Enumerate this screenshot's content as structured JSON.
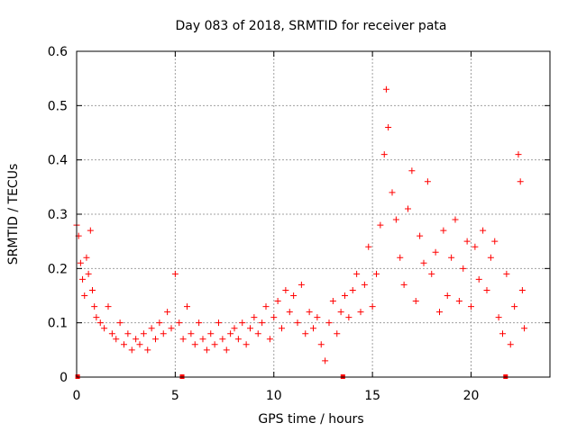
{
  "chart_data": {
    "type": "scatter",
    "title": "Day 083 of 2018, SRMTID for receiver pata",
    "xlabel": "GPS time / hours",
    "ylabel": "SRMTID / TECUs",
    "xlim": [
      0,
      24
    ],
    "ylim": [
      0,
      0.6
    ],
    "xticks": [
      0,
      5,
      10,
      15,
      20
    ],
    "xtick_labels": [
      "0",
      "5",
      "10",
      "15",
      "20"
    ],
    "yticks": [
      0,
      0.1,
      0.2,
      0.3,
      0.4,
      0.5,
      0.6
    ],
    "ytick_labels": [
      "0",
      "0.1",
      "0.2",
      "0.3",
      "0.4",
      "0.5",
      "0.6"
    ],
    "grid": true,
    "marker": "+",
    "color": "#ff0000",
    "gap_markers": [
      0.05,
      5.35,
      13.5,
      21.75
    ],
    "series": [
      {
        "name": "SRMTID",
        "x": [
          0.0,
          0.1,
          0.2,
          0.3,
          0.4,
          0.5,
          0.6,
          0.7,
          0.8,
          0.9,
          1.0,
          1.2,
          1.4,
          1.6,
          1.8,
          2.0,
          2.2,
          2.4,
          2.6,
          2.8,
          3.0,
          3.2,
          3.4,
          3.6,
          3.8,
          4.0,
          4.2,
          4.4,
          4.6,
          4.8,
          5.0,
          5.2,
          5.4,
          5.6,
          5.8,
          6.0,
          6.2,
          6.4,
          6.6,
          6.8,
          7.0,
          7.2,
          7.4,
          7.6,
          7.8,
          8.0,
          8.2,
          8.4,
          8.6,
          8.8,
          9.0,
          9.2,
          9.4,
          9.6,
          9.8,
          10.0,
          10.2,
          10.4,
          10.6,
          10.8,
          11.0,
          11.2,
          11.4,
          11.6,
          11.8,
          12.0,
          12.2,
          12.4,
          12.6,
          12.8,
          13.0,
          13.2,
          13.4,
          13.6,
          13.8,
          14.0,
          14.2,
          14.4,
          14.6,
          14.8,
          15.0,
          15.2,
          15.4,
          15.6,
          15.7,
          15.8,
          16.0,
          16.2,
          16.4,
          16.6,
          16.8,
          17.0,
          17.2,
          17.4,
          17.6,
          17.8,
          18.0,
          18.2,
          18.4,
          18.6,
          18.8,
          19.0,
          19.2,
          19.4,
          19.6,
          19.8,
          20.0,
          20.2,
          20.4,
          20.6,
          20.8,
          21.0,
          21.2,
          21.4,
          21.6,
          21.8,
          22.0,
          22.2,
          22.4,
          22.5,
          22.6,
          22.7
        ],
        "y": [
          0.28,
          0.26,
          0.21,
          0.18,
          0.15,
          0.22,
          0.19,
          0.27,
          0.16,
          0.13,
          0.11,
          0.1,
          0.09,
          0.13,
          0.08,
          0.07,
          0.1,
          0.06,
          0.08,
          0.05,
          0.07,
          0.06,
          0.08,
          0.05,
          0.09,
          0.07,
          0.1,
          0.08,
          0.12,
          0.09,
          0.19,
          0.1,
          0.07,
          0.13,
          0.08,
          0.06,
          0.1,
          0.07,
          0.05,
          0.08,
          0.06,
          0.1,
          0.07,
          0.05,
          0.08,
          0.09,
          0.07,
          0.1,
          0.06,
          0.09,
          0.11,
          0.08,
          0.1,
          0.13,
          0.07,
          0.11,
          0.14,
          0.09,
          0.16,
          0.12,
          0.15,
          0.1,
          0.17,
          0.08,
          0.12,
          0.09,
          0.11,
          0.06,
          0.03,
          0.1,
          0.14,
          0.08,
          0.12,
          0.15,
          0.11,
          0.16,
          0.19,
          0.12,
          0.17,
          0.24,
          0.13,
          0.19,
          0.28,
          0.41,
          0.53,
          0.46,
          0.34,
          0.29,
          0.22,
          0.17,
          0.31,
          0.38,
          0.14,
          0.26,
          0.21,
          0.36,
          0.19,
          0.23,
          0.12,
          0.27,
          0.15,
          0.22,
          0.29,
          0.14,
          0.2,
          0.25,
          0.13,
          0.24,
          0.18,
          0.27,
          0.16,
          0.22,
          0.25,
          0.11,
          0.08,
          0.19,
          0.06,
          0.13,
          0.41,
          0.36,
          0.16,
          0.09
        ]
      }
    ]
  }
}
